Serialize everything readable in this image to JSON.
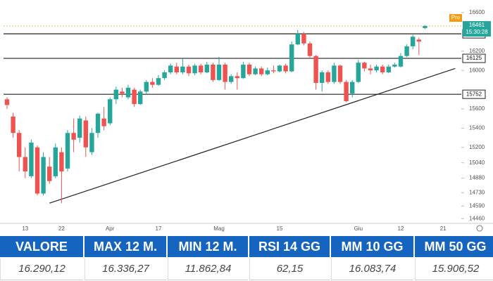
{
  "chart_data": {
    "type": "candlestick",
    "categories": [
      null,
      null,
      null,
      "13",
      null,
      null,
      null,
      null,
      null,
      "22",
      null,
      null,
      null,
      null,
      null,
      null,
      null,
      "Apr",
      null,
      null,
      null,
      null,
      null,
      null,
      null,
      "17",
      null,
      null,
      null,
      null,
      null,
      null,
      null,
      null,
      null,
      "Mag",
      null,
      null,
      null,
      null,
      null,
      null,
      null,
      null,
      null,
      "15",
      null,
      null,
      null,
      null,
      null,
      null,
      null,
      null,
      null,
      null,
      null,
      null,
      "Giu",
      null,
      null,
      null,
      null,
      null,
      null,
      "12",
      null,
      null,
      null,
      null,
      null,
      null,
      "21",
      null
    ],
    "open": [
      15700,
      15520,
      15350,
      15100,
      14900,
      15200,
      14720,
      15000,
      14900,
      15150,
      14980,
      15350,
      15300,
      15480,
      15150,
      15350,
      15500,
      15450,
      15700,
      15780,
      15720,
      15800,
      15650,
      15780,
      15880,
      15850,
      15920,
      15980,
      16040,
      15980,
      16040,
      15970,
      16050,
      15980,
      16060,
      15900,
      16060,
      15880,
      15940,
      15920,
      16060,
      15960,
      16020,
      15960,
      16000,
      15990,
      16050,
      15990,
      16270,
      16380,
      16280,
      16150,
      15870,
      15980,
      15880,
      16050,
      15880,
      15760,
      15880,
      16080,
      16020,
      16000,
      16040,
      15980,
      16040,
      16040,
      16150,
      16250,
      16320,
      16440,
      null,
      null,
      null,
      null
    ],
    "high": [
      15720,
      15560,
      15380,
      15200,
      15280,
      15220,
      15150,
      15100,
      15240,
      15200,
      15380,
      15500,
      15530,
      15520,
      15400,
      15560,
      15620,
      15720,
      15830,
      15820,
      15850,
      15820,
      15800,
      15900,
      15920,
      15950,
      16000,
      16070,
      16080,
      16120,
      16060,
      16070,
      16070,
      16090,
      16080,
      16140,
      16080,
      15960,
      15980,
      16090,
      16080,
      16040,
      16040,
      16030,
      16050,
      16060,
      16070,
      16300,
      16420,
      16400,
      16300,
      16160,
      16000,
      16000,
      16080,
      16060,
      15900,
      15900,
      16110,
      16090,
      16060,
      16060,
      16060,
      16060,
      16080,
      16180,
      16270,
      16370,
      16340,
      16470,
      null,
      null,
      null,
      null
    ],
    "low": [
      15600,
      15300,
      14950,
      14880,
      14880,
      14700,
      14700,
      14820,
      14880,
      14620,
      14950,
      15150,
      15250,
      15100,
      15120,
      15300,
      15380,
      15430,
      15650,
      15720,
      15700,
      15620,
      15640,
      15760,
      15820,
      15840,
      15900,
      15960,
      15960,
      15960,
      15940,
      15950,
      15960,
      15970,
      15880,
      15890,
      15800,
      15860,
      15800,
      15910,
      15940,
      15950,
      15940,
      15950,
      15970,
      15980,
      15970,
      15980,
      16260,
      16260,
      16120,
      15800,
      15780,
      15860,
      15860,
      15860,
      15670,
      15720,
      15870,
      15990,
      15960,
      15980,
      15960,
      15970,
      16030,
      16030,
      16140,
      16220,
      16160,
      16430,
      null,
      null,
      null,
      null
    ],
    "close": [
      15640,
      15350,
      15100,
      14950,
      15250,
      14720,
      15100,
      14850,
      15200,
      14950,
      15350,
      15280,
      15500,
      15200,
      15350,
      15550,
      15420,
      15700,
      15800,
      15760,
      15820,
      15650,
      15780,
      15880,
      15850,
      15920,
      15980,
      16050,
      15980,
      16040,
      15970,
      16050,
      15980,
      16060,
      15900,
      16060,
      15880,
      15940,
      15920,
      16060,
      15960,
      16020,
      15960,
      16000,
      15990,
      16050,
      15990,
      16270,
      16380,
      16280,
      16150,
      15870,
      15980,
      15880,
      16050,
      15880,
      15680,
      15880,
      16080,
      16020,
      16000,
      16040,
      15980,
      16040,
      16060,
      16150,
      16250,
      16350,
      16300,
      16461,
      null,
      null,
      null,
      null
    ],
    "up_color": "#26a69a",
    "down_color": "#ef5350",
    "ylim": [
      14410,
      16695
    ],
    "yticks": [
      14460,
      14590,
      14730,
      14880,
      15040,
      15200,
      15400,
      15600,
      16000,
      16200,
      16600
    ],
    "levels": [
      16380,
      16125,
      15752
    ],
    "last_price": 16461,
    "last_time": "15:30:28",
    "pre_label": "Pre",
    "trendline": {
      "x": [
        7,
        74
      ],
      "y": [
        14620,
        16020
      ]
    }
  },
  "table": {
    "headers": [
      "VALORE",
      "MAX 12 M.",
      "MIN 12 M.",
      "RSI 14 GG",
      "MM 10 GG",
      "MM 50 GG"
    ],
    "values": [
      "16.290,12",
      "16.336,27",
      "11.862,84",
      "62,15",
      "16.083,74",
      "15.906,52"
    ]
  }
}
